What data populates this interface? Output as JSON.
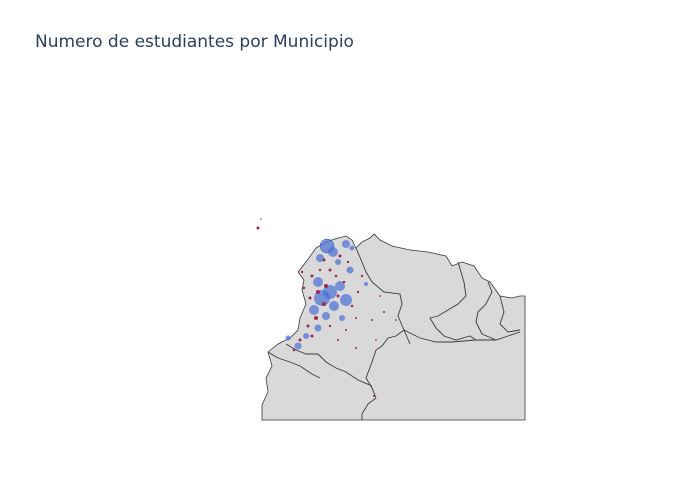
{
  "title": "Numero de estudiantes por Municipio",
  "colors": {
    "land": "#d9d9d9",
    "border": "#3a3a3a",
    "large_marker": "#4a6fd6",
    "small_marker": "#a0294f"
  },
  "chart_data": {
    "type": "scatter",
    "map_type": "bubble-map (geo scatter)",
    "region": "Colombia and neighbouring countries",
    "marker_encoding": "marker size = number of students per municipality",
    "axis_ticks_shown": false,
    "legend": "none"
  }
}
